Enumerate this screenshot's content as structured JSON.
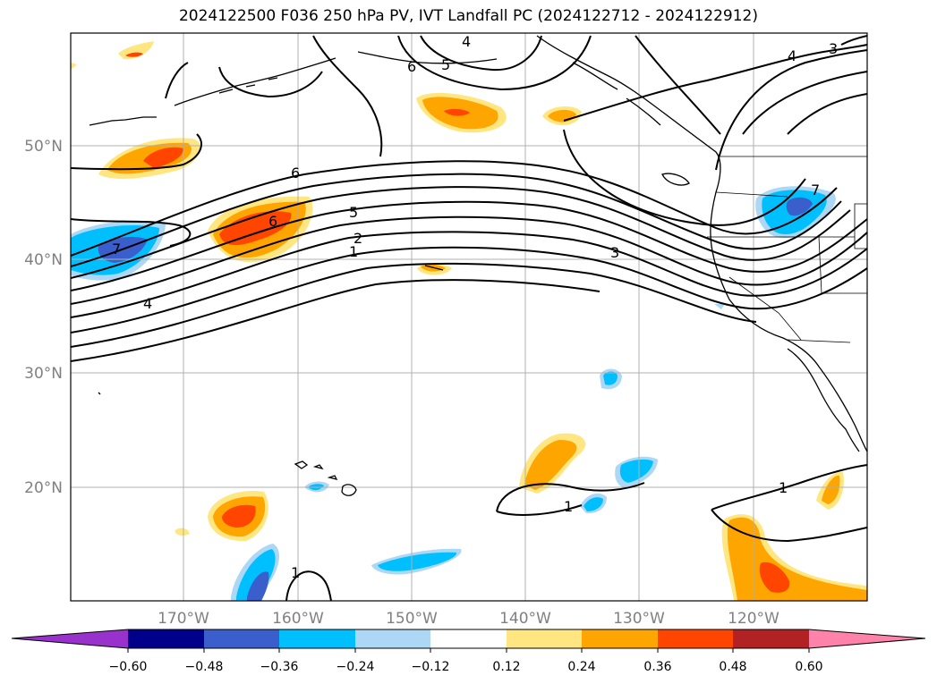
{
  "title": "2024122500 F036 250 hPa PV, IVT Landfall PC (2024122712 - 2024122912)",
  "lat_labels": [
    "50°N",
    "40°N",
    "30°N",
    "20°N"
  ],
  "lon_labels": [
    "170°W",
    "160°W",
    "150°W",
    "140°W",
    "130°W",
    "120°W"
  ],
  "colorbar": {
    "tick_labels": [
      "−0.60",
      "−0.48",
      "−0.36",
      "−0.24",
      "−0.12",
      "0.12",
      "0.24",
      "0.36",
      "0.48",
      "0.60"
    ],
    "colors": [
      "#9932cc",
      "#00008b",
      "#3a5fcd",
      "#00bfff",
      "#add8f5",
      "#ffffff",
      "#ffe680",
      "#ffa500",
      "#ff4500",
      "#b22222",
      "#ff82ab"
    ]
  },
  "contour_labels": [
    "4",
    "5",
    "6",
    "4",
    "3",
    "6",
    "7",
    "5",
    "2",
    "1",
    "4",
    "3",
    "7",
    "6",
    "1",
    "1",
    "1"
  ],
  "colors": {
    "line": "#000000",
    "grid": "#b0b0b0",
    "axis_label": "#808080"
  }
}
